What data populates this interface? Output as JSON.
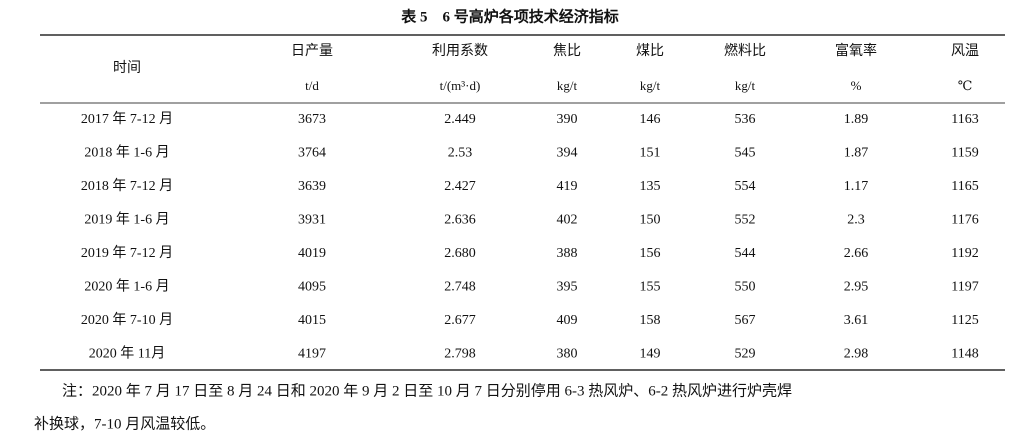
{
  "header": {
    "title": "表 5　6 号高炉各项技术经济指标"
  },
  "table": {
    "columns": [
      {
        "name": "时间"
      },
      {
        "name": "日产量",
        "unit": "t/d"
      },
      {
        "name": "利用系数",
        "unit": "t/(m³·d)"
      },
      {
        "name": "焦比",
        "unit": "kg/t"
      },
      {
        "name": "煤比",
        "unit": "kg/t"
      },
      {
        "name": "燃料比",
        "unit": "kg/t"
      },
      {
        "name": "富氧率",
        "unit": "%"
      },
      {
        "name": "风温",
        "unit": "℃"
      }
    ],
    "rows": [
      [
        "2017 年 7-12 月",
        "3673",
        "2.449",
        "390",
        "146",
        "536",
        "1.89",
        "1163"
      ],
      [
        "2018 年 1-6 月",
        "3764",
        "2.53",
        "394",
        "151",
        "545",
        "1.87",
        "1159"
      ],
      [
        "2018 年 7-12 月",
        "3639",
        "2.427",
        "419",
        "135",
        "554",
        "1.17",
        "1165"
      ],
      [
        "2019 年 1-6 月",
        "3931",
        "2.636",
        "402",
        "150",
        "552",
        "2.3",
        "1176"
      ],
      [
        "2019 年 7-12 月",
        "4019",
        "2.680",
        "388",
        "156",
        "544",
        "2.66",
        "1192"
      ],
      [
        "2020 年 1-6 月",
        "4095",
        "2.748",
        "395",
        "155",
        "550",
        "2.95",
        "1197"
      ],
      [
        "2020 年 7-10 月",
        "4015",
        "2.677",
        "409",
        "158",
        "567",
        "3.61",
        "1125"
      ],
      [
        "2020 年 11月",
        "4197",
        "2.798",
        "380",
        "149",
        "529",
        "2.98",
        "1148"
      ]
    ]
  },
  "note": [
    "注：2020 年 7 月 17 日至 8 月 24 日和 2020 年 9 月 2 日至 10 月 7 日分别停用 6-3 热风炉、6-2 热风炉进行炉壳焊",
    "补换球，7-10 月风温较低。"
  ]
}
